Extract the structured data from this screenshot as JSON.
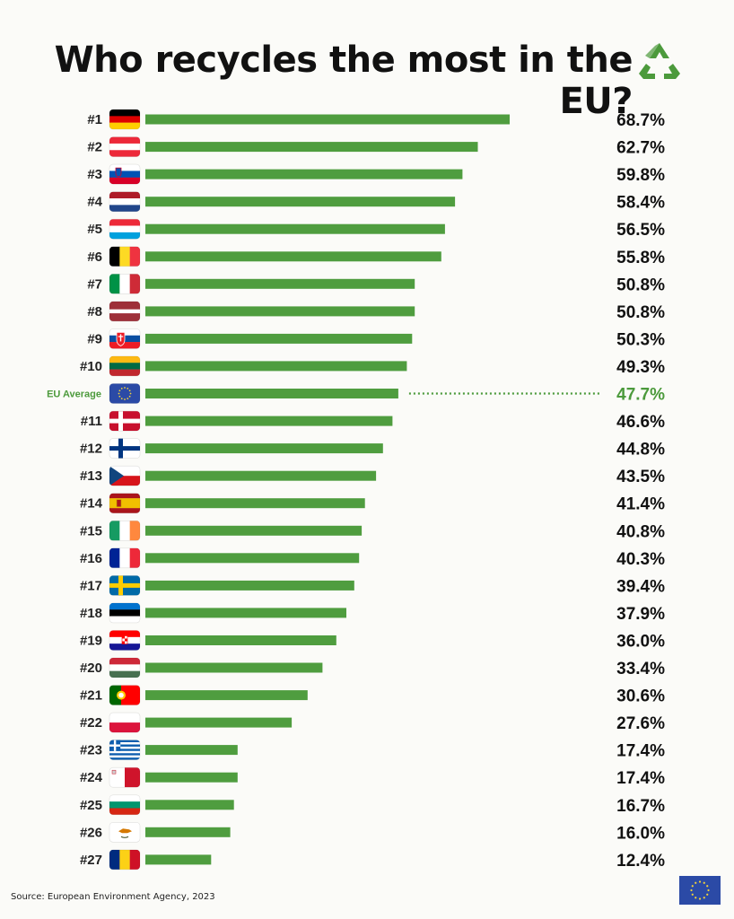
{
  "colors": {
    "bar": "#4f9d3f",
    "accent": "#4c9a3c",
    "text": "#111111",
    "background": "#fbfbf8"
  },
  "source": "Source: European Environment Agency, 2023",
  "chart_data": {
    "type": "bar",
    "orientation": "horizontal",
    "title": "Who recycles the most in the EU?",
    "xlim": [
      0,
      70
    ],
    "grid": false,
    "categories": [
      "#1",
      "#2",
      "#3",
      "#4",
      "#5",
      "#6",
      "#7",
      "#8",
      "#9",
      "#10",
      "EU Average",
      "#11",
      "#12",
      "#13",
      "#14",
      "#15",
      "#16",
      "#17",
      "#18",
      "#19",
      "#20",
      "#21",
      "#22",
      "#23",
      "#24",
      "#25",
      "#26",
      "#27"
    ],
    "flags": [
      "germany",
      "austria",
      "slovenia",
      "netherlands",
      "luxembourg",
      "belgium",
      "italy",
      "latvia",
      "slovakia",
      "lithuania",
      "eu",
      "denmark",
      "finland",
      "czechia",
      "spain",
      "ireland",
      "france",
      "sweden",
      "estonia",
      "croatia",
      "hungary",
      "portugal",
      "poland",
      "greece",
      "malta",
      "bulgaria",
      "cyprus",
      "romania"
    ],
    "values": [
      68.7,
      62.7,
      59.8,
      58.4,
      56.5,
      55.8,
      50.8,
      50.8,
      50.3,
      49.3,
      47.7,
      46.6,
      44.8,
      43.5,
      41.4,
      40.8,
      40.3,
      39.4,
      37.9,
      36.0,
      33.4,
      30.6,
      27.6,
      17.4,
      17.4,
      16.7,
      16.0,
      12.4
    ],
    "value_labels": [
      "68.7%",
      "62.7%",
      "59.8%",
      "58.4%",
      "56.5%",
      "55.8%",
      "50.8%",
      "50.8%",
      "50.3%",
      "49.3%",
      "47.7%",
      "46.6%",
      "44.8%",
      "43.5%",
      "41.4%",
      "40.8%",
      "40.3%",
      "39.4%",
      "37.9%",
      "36.0%",
      "33.4%",
      "30.6%",
      "27.6%",
      "17.4%",
      "17.4%",
      "16.7%",
      "16.0%",
      "12.4%"
    ],
    "highlight": "EU Average"
  }
}
